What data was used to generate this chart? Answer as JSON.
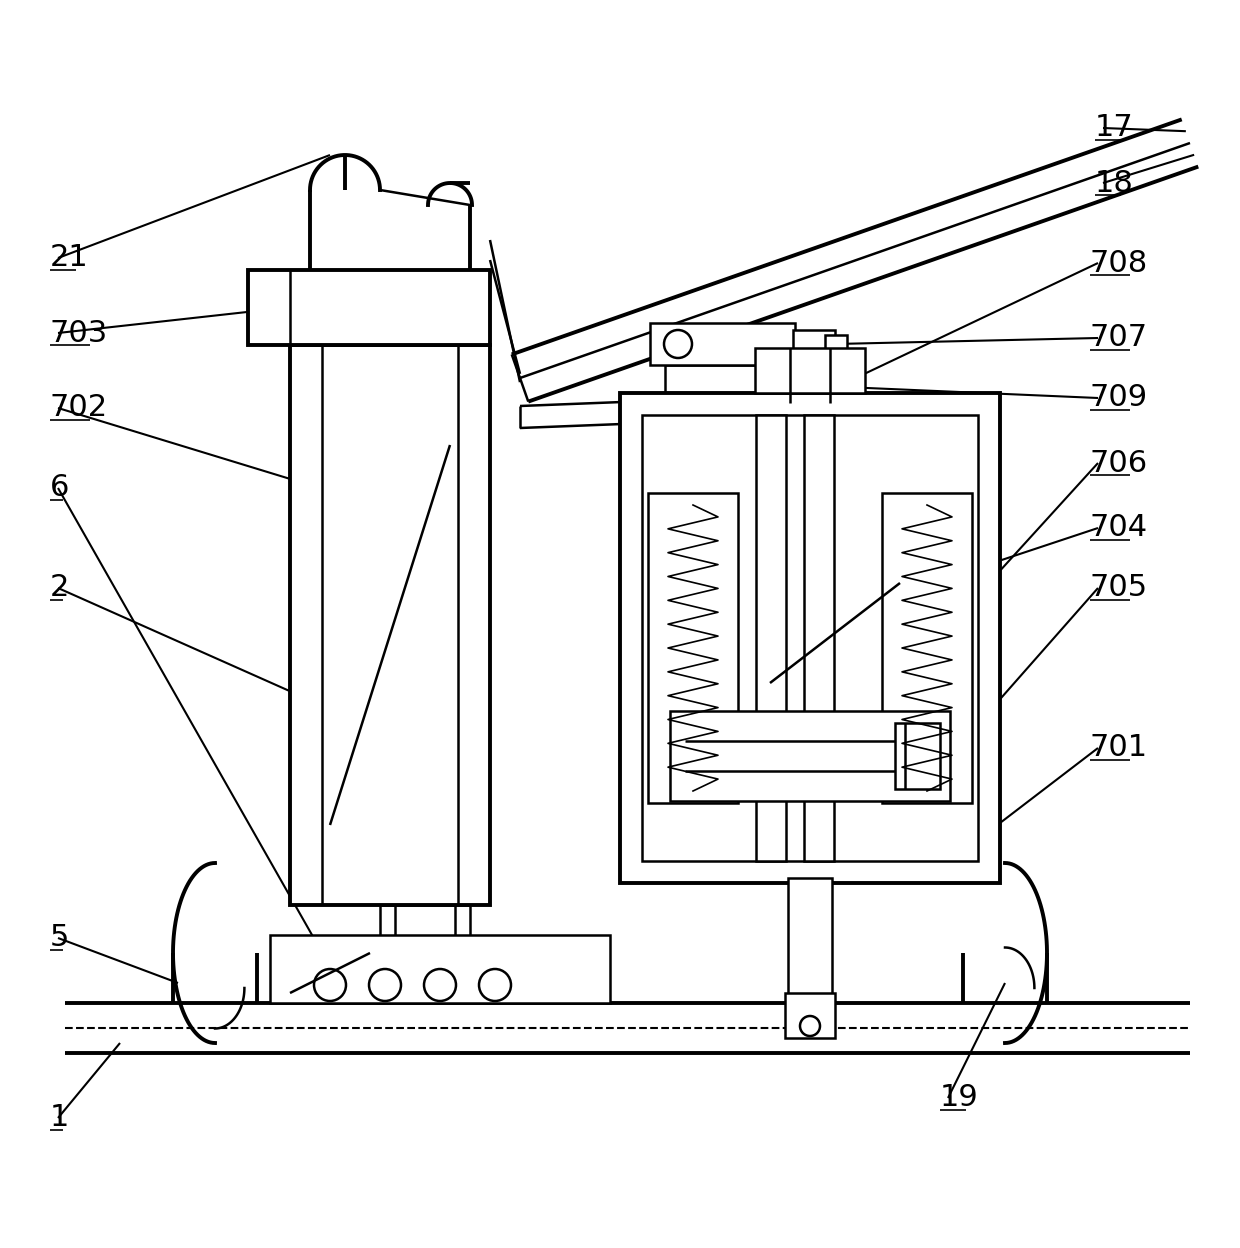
{
  "bg": "#ffffff",
  "lc": "#000000",
  "lw": 1.8,
  "tlw": 2.8,
  "fs": 20,
  "fw": 12.4,
  "fh": 12.48
}
